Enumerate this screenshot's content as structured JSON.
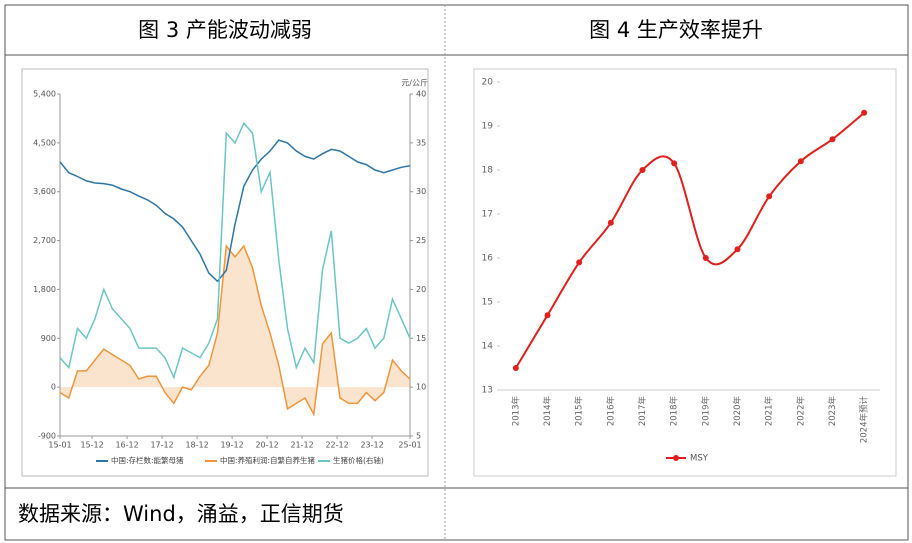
{
  "header": [
    "图 3  产能波动减弱",
    "图 4 生产效率提升"
  ],
  "source": "数据来源：Wind，涌益，正信期货",
  "chart_data": [
    {
      "type": "line",
      "x": [
        "15-01",
        "15-04",
        "15-07",
        "15-10",
        "16-01",
        "16-04",
        "16-07",
        "16-10",
        "17-01",
        "17-04",
        "17-07",
        "17-10",
        "18-01",
        "18-04",
        "18-07",
        "18-10",
        "19-01",
        "19-04",
        "19-07",
        "19-10",
        "20-01",
        "20-04",
        "20-07",
        "20-10",
        "21-01",
        "21-04",
        "21-07",
        "21-10",
        "22-01",
        "22-04",
        "22-07",
        "22-10",
        "23-01",
        "23-04",
        "23-07",
        "23-10",
        "24-01",
        "24-04",
        "24-07",
        "24-10",
        "25-01"
      ],
      "xlim": [
        "15-01",
        "25-01"
      ],
      "xticks": [
        "15-01",
        "15-12",
        "16-12",
        "17-12",
        "18-12",
        "19-12",
        "20-12",
        "21-12",
        "22-12",
        "23-12",
        "25-01"
      ],
      "ylim": [
        -900,
        5400
      ],
      "yticks": [
        {
          "value": -900,
          "label": "-900"
        },
        0,
        900,
        {
          "value": 1800,
          "label": "1,800"
        },
        {
          "value": 2700,
          "label": "2,700"
        },
        {
          "value": 3600,
          "label": "3,600"
        },
        {
          "value": 4500,
          "label": "4,500"
        },
        {
          "value": 5400,
          "label": "5,400"
        }
      ],
      "y2lim": [
        5,
        40
      ],
      "y2ticks": [
        5,
        10,
        15,
        20,
        25,
        30,
        35,
        40
      ],
      "y2_label": "元/公斤",
      "series": [
        {
          "name": "中国:存栏数:能繁母猪",
          "color": "#2e75a6",
          "values": [
            4150,
            3950,
            3880,
            3800,
            3760,
            3750,
            3720,
            3650,
            3600,
            3520,
            3450,
            3350,
            3200,
            3100,
            2950,
            2700,
            2450,
            2100,
            1950,
            2150,
            3000,
            3700,
            4000,
            4200,
            4350,
            4550,
            4500,
            4350,
            4250,
            4200,
            4300,
            4380,
            4350,
            4250,
            4150,
            4100,
            4000,
            3950,
            4000,
            4050,
            4080
          ]
        },
        {
          "name": "中国:养殖利润:自繁自养生猪",
          "color": "#f0953a",
          "area": true,
          "values": [
            -100,
            -200,
            300,
            300,
            500,
            700,
            600,
            500,
            400,
            150,
            200,
            200,
            -100,
            -300,
            0,
            -50,
            200,
            400,
            1000,
            2600,
            2400,
            2600,
            2200,
            1500,
            1000,
            400,
            -400,
            -300,
            -200,
            -500,
            800,
            1000,
            -200,
            -300,
            -300,
            -100,
            -250,
            -100,
            500,
            300,
            150
          ]
        },
        {
          "name": "生猪价格(右轴)",
          "color": "#6cc5c4",
          "axis": "y2",
          "values": [
            13,
            12,
            16,
            15,
            17,
            20,
            18,
            17,
            16,
            14,
            14,
            14,
            13,
            11,
            14,
            13.5,
            13,
            14.5,
            17,
            36,
            35,
            37,
            36,
            30,
            32,
            23,
            16,
            12,
            14,
            12.5,
            22,
            26,
            15,
            14.5,
            15,
            16,
            14,
            15,
            19,
            17,
            15
          ]
        }
      ]
    },
    {
      "type": "line",
      "categories": [
        "2013年",
        "2014年",
        "2015年",
        "2016年",
        "2017年",
        "2018年",
        "2019年",
        "2020年",
        "2021年",
        "2022年",
        "2023年",
        "2024年预计"
      ],
      "ylim": [
        13,
        20
      ],
      "yticks": [
        13,
        14,
        15,
        16,
        17,
        18,
        19,
        20
      ],
      "smooth": true,
      "series": [
        {
          "name": "MSY",
          "color": "#e0201c",
          "values": [
            13.5,
            14.7,
            15.9,
            16.8,
            18,
            18.15,
            16,
            16.2,
            17.4,
            18.2,
            18.7,
            19.3
          ]
        }
      ]
    }
  ]
}
